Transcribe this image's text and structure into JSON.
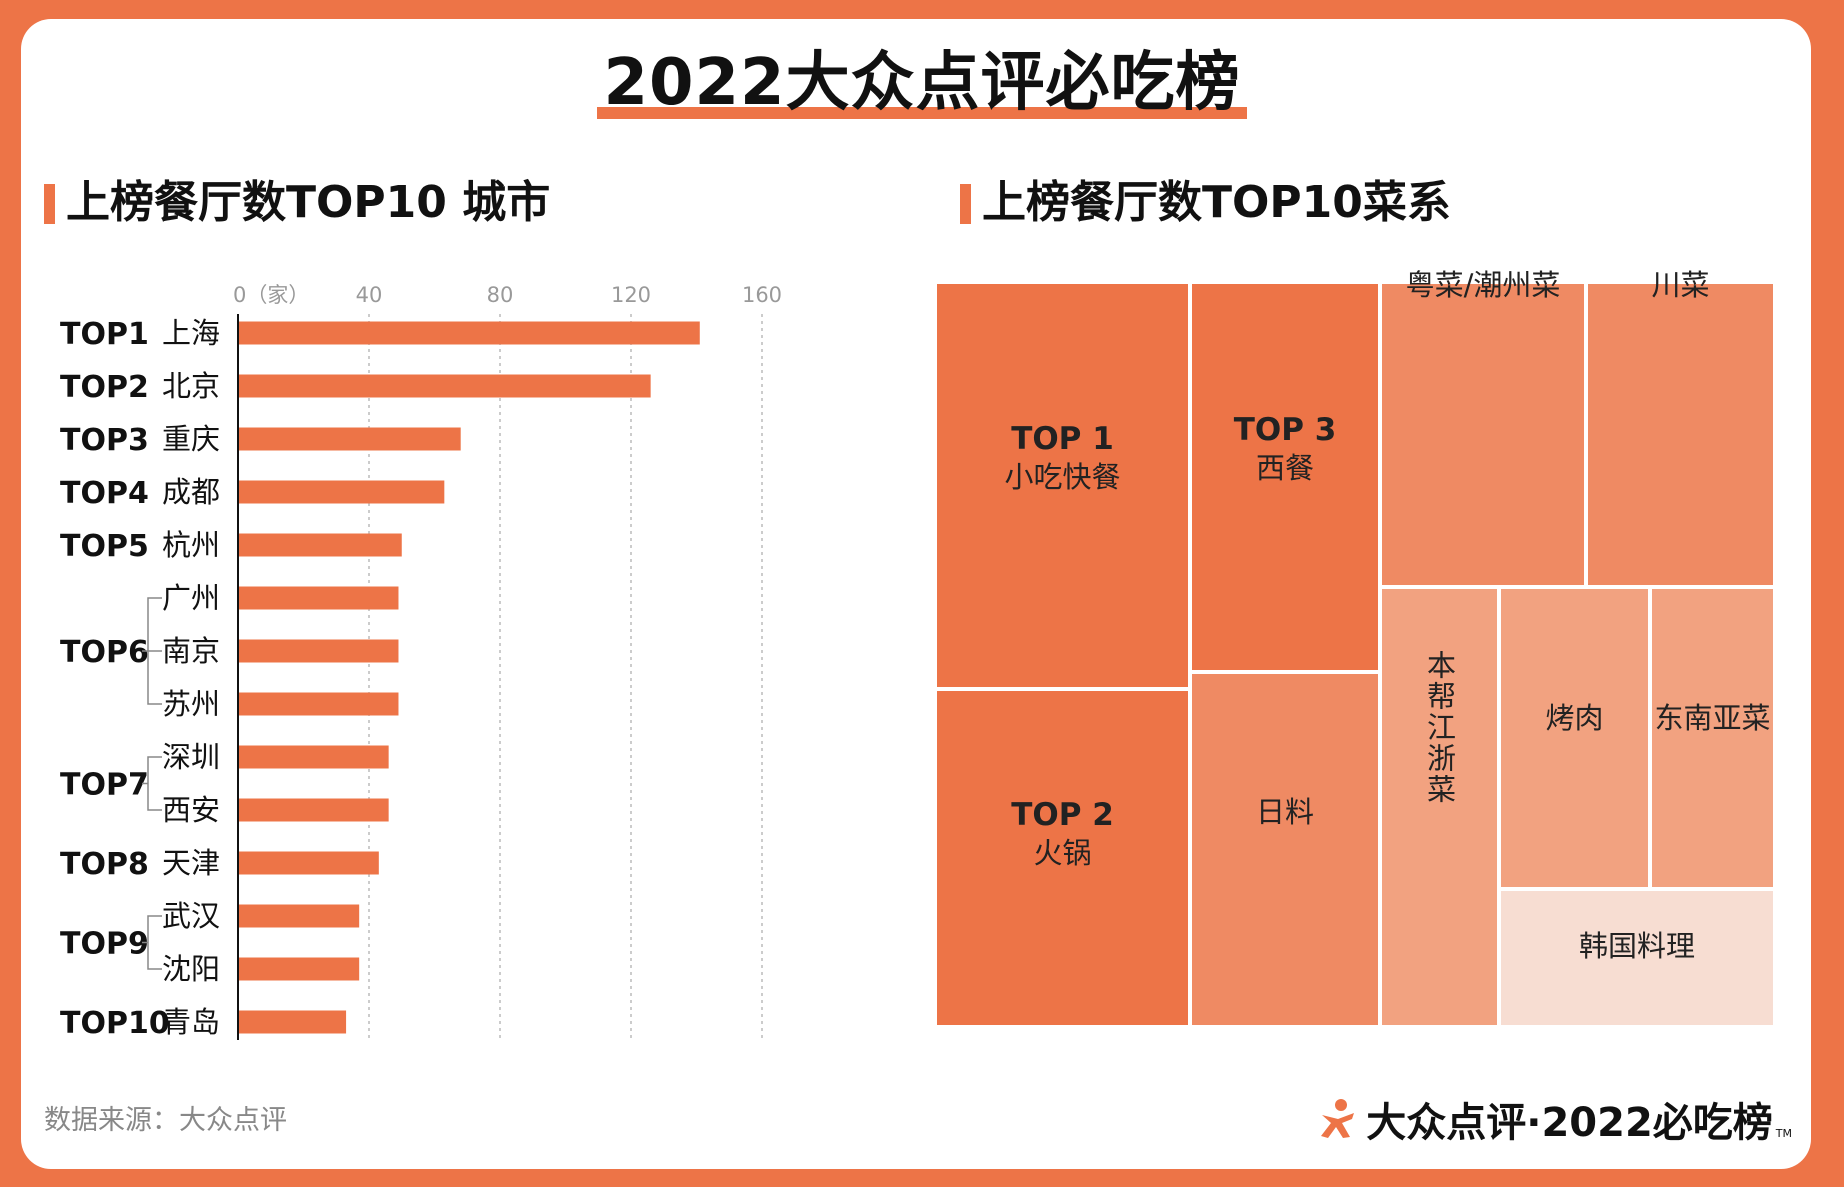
{
  "title": "2022大众点评必吃榜",
  "left_section": {
    "title": "上榜餐厅数TOP10 城市"
  },
  "right_section": {
    "title": "上榜餐厅数TOP10菜系"
  },
  "source_note": "数据来源：大众点评",
  "footer": {
    "brand": "大众点评·2022必吃榜",
    "tm": "TM"
  },
  "colors": {
    "background": "#ED7447",
    "bar": "#ED7447",
    "tile_1": "#ED7447",
    "tile_2": "#EF8A63",
    "tile_3": "#F2A280",
    "tile_4": "#F7DDD2"
  },
  "chart_data": [
    {
      "type": "bar",
      "orientation": "horizontal",
      "title": "上榜餐厅数TOP10 城市",
      "xlim": [
        0,
        160
      ],
      "x_ticks": [
        0,
        40,
        80,
        120,
        160
      ],
      "x_tick_labels": [
        "0（家）",
        "40",
        "80",
        "120",
        "160"
      ],
      "grid": "vertical dashed",
      "categories": [
        "上海",
        "北京",
        "重庆",
        "成都",
        "杭州",
        "广州",
        "南京",
        "苏州",
        "深圳",
        "西安",
        "天津",
        "武汉",
        "沈阳",
        "青岛"
      ],
      "values": [
        141,
        126,
        68,
        63,
        50,
        49,
        49,
        49,
        46,
        46,
        43,
        37,
        37,
        33
      ],
      "rank_groups": [
        {
          "label": "TOP1",
          "members": [
            0
          ]
        },
        {
          "label": "TOP2",
          "members": [
            1
          ]
        },
        {
          "label": "TOP3",
          "members": [
            2
          ]
        },
        {
          "label": "TOP4",
          "members": [
            3
          ]
        },
        {
          "label": "TOP5",
          "members": [
            4
          ]
        },
        {
          "label": "TOP6",
          "members": [
            5,
            6,
            7
          ]
        },
        {
          "label": "TOP7",
          "members": [
            8,
            9
          ]
        },
        {
          "label": "TOP8",
          "members": [
            10
          ]
        },
        {
          "label": "TOP9",
          "members": [
            11,
            12
          ]
        },
        {
          "label": "TOP10",
          "members": [
            13
          ]
        }
      ]
    },
    {
      "type": "treemap",
      "title": "上榜餐厅数TOP10菜系",
      "items": [
        {
          "rank": "TOP 1",
          "name": "小吃快餐",
          "shade": 1
        },
        {
          "rank": "TOP 2",
          "name": "火锅",
          "shade": 1
        },
        {
          "rank": "TOP 3",
          "name": "西餐",
          "shade": 1
        },
        {
          "rank": "",
          "name": "日料",
          "shade": 2
        },
        {
          "rank": "",
          "name": "粤菜/潮州菜",
          "shade": 2
        },
        {
          "rank": "",
          "name": "川菜",
          "shade": 2
        },
        {
          "rank": "",
          "name": "本帮江浙菜",
          "shade": 3
        },
        {
          "rank": "",
          "name": "烤肉",
          "shade": 3
        },
        {
          "rank": "",
          "name": "东南亚菜",
          "shade": 3
        },
        {
          "rank": "",
          "name": "韩国料理",
          "shade": 4
        }
      ]
    }
  ]
}
